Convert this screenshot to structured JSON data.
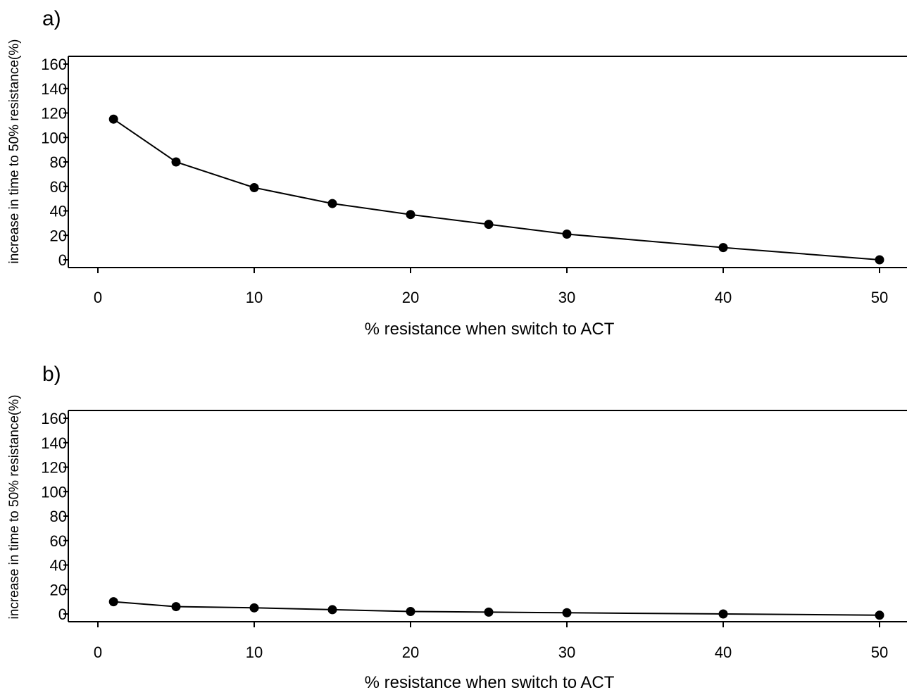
{
  "chart_data": [
    {
      "type": "line",
      "panel_label": "a)",
      "title": "",
      "xlabel": "% resistance when switch to ACT",
      "ylabel": "increase in time to 50% resistance(%)",
      "xlim": [
        0,
        50
      ],
      "ylim": [
        0,
        160
      ],
      "xticks": [
        0,
        10,
        20,
        30,
        40,
        50
      ],
      "yticks": [
        0,
        20,
        40,
        60,
        80,
        100,
        120,
        140,
        160
      ],
      "series": [
        {
          "x": [
            1,
            5,
            10,
            15,
            20,
            25,
            30,
            40,
            50
          ],
          "y": [
            115,
            80,
            59,
            46,
            37,
            29,
            21,
            10,
            0
          ]
        }
      ],
      "grid": false,
      "legend": "none"
    },
    {
      "type": "line",
      "panel_label": "b)",
      "title": "",
      "xlabel": "% resistance when switch to ACT",
      "ylabel": "increase in time to 50% resistance(%)",
      "xlim": [
        0,
        50
      ],
      "ylim": [
        0,
        160
      ],
      "xticks": [
        0,
        10,
        20,
        30,
        40,
        50
      ],
      "yticks": [
        0,
        20,
        40,
        60,
        80,
        100,
        120,
        140,
        160
      ],
      "series": [
        {
          "x": [
            1,
            5,
            10,
            15,
            20,
            25,
            30,
            40,
            50
          ],
          "y": [
            10,
            6,
            5,
            3.5,
            2,
            1.5,
            1,
            0,
            -1
          ]
        }
      ],
      "grid": false,
      "legend": "none"
    }
  ]
}
